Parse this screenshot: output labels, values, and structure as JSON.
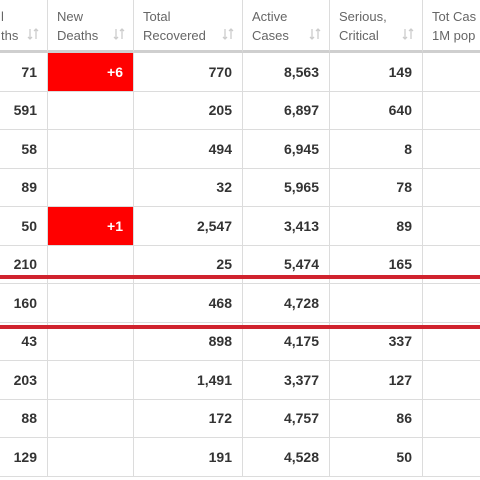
{
  "table": {
    "header": [
      [
        "l",
        "ths"
      ],
      [
        "New",
        "Deaths"
      ],
      [
        "Total",
        "Recovered"
      ],
      [
        "Active",
        "Cases"
      ],
      [
        "Serious,",
        "Critical"
      ],
      [
        "Tot Cas",
        "1M pop"
      ]
    ],
    "rows": [
      [
        "71",
        "+6",
        "770",
        "8,563",
        "149",
        null
      ],
      [
        "591",
        null,
        "205",
        "6,897",
        "640",
        null
      ],
      [
        "58",
        null,
        "494",
        "6,945",
        "8",
        null
      ],
      [
        "89",
        null,
        "32",
        "5,965",
        "78",
        null
      ],
      [
        "50",
        "+1",
        "2,547",
        "3,413",
        "89",
        null
      ],
      [
        "210",
        null,
        "25",
        "5,474",
        "165",
        null
      ],
      [
        "160",
        null,
        "468",
        "4,728",
        null,
        null
      ],
      [
        "43",
        null,
        "898",
        "4,175",
        "337",
        null
      ],
      [
        "203",
        null,
        "1,491",
        "3,377",
        "127",
        null
      ],
      [
        "88",
        null,
        "172",
        "4,757",
        "86",
        null
      ],
      [
        "129",
        null,
        "191",
        "4,528",
        "50",
        null
      ]
    ]
  }
}
